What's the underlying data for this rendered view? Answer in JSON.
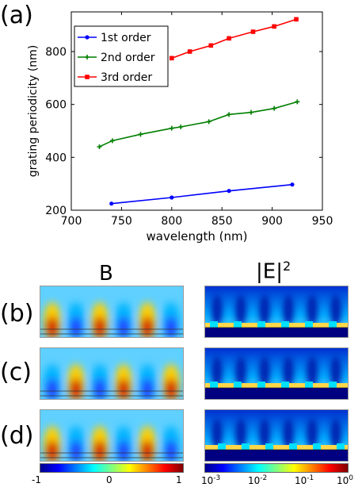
{
  "panel_labels": {
    "a": "(a)",
    "b": "(b)",
    "c": "(c)",
    "d": "(d)"
  },
  "column_titles": {
    "b_field": "B",
    "e_field": "|E|",
    "e_field_sup": "2"
  },
  "chart_data": {
    "type": "line",
    "xlabel": "wavelength (nm)",
    "ylabel": "grating periodicity (nm)",
    "xlim": [
      700,
      950
    ],
    "ylim": [
      200,
      950
    ],
    "xticks": [
      700,
      750,
      800,
      850,
      900,
      950
    ],
    "yticks": [
      200,
      400,
      600,
      800
    ],
    "grid": false,
    "legend_position": "top-left",
    "series": [
      {
        "name": "1st order",
        "color": "#0000ff",
        "marker": "circle",
        "x": [
          740,
          800,
          857,
          920
        ],
        "y": [
          225,
          248,
          273,
          297
        ]
      },
      {
        "name": "2nd order",
        "color": "#007f00",
        "marker": "plus",
        "x": [
          728,
          741,
          769,
          800,
          809,
          837,
          857,
          879,
          902,
          925
        ],
        "y": [
          440,
          463,
          487,
          510,
          515,
          535,
          562,
          570,
          585,
          610
        ]
      },
      {
        "name": "3rd order",
        "color": "#ff0000",
        "marker": "square",
        "x": [
          800,
          818,
          839,
          857,
          881,
          902,
          924
        ],
        "y": [
          775,
          800,
          823,
          850,
          875,
          895,
          922
        ]
      }
    ]
  },
  "colorbars": {
    "b": {
      "ticks": [
        "-1",
        "0",
        "1"
      ]
    },
    "e": {
      "ticks": [
        {
          "base": "10",
          "exp": "-3"
        },
        {
          "base": "10",
          "exp": "-2"
        },
        {
          "base": "10",
          "exp": "-1"
        },
        {
          "base": "10",
          "exp": "0"
        }
      ]
    }
  },
  "field_maps": {
    "rows": [
      {
        "label_key": "b",
        "b_colors": [
          "#d40000",
          "#1e3cff",
          "#d40000",
          "#1e3cff",
          "#d40000",
          "#1e3cff"
        ]
      },
      {
        "label_key": "c",
        "b_colors": [
          "#1e3cff",
          "#d40000",
          "#1e3cff",
          "#d40000",
          "#1e3cff",
          "#d40000"
        ]
      },
      {
        "label_key": "d",
        "b_colors": [
          "#d40000",
          "#1e3cff",
          "#d40000",
          "#1e3cff",
          "#d40000",
          "#1e3cff"
        ]
      }
    ]
  }
}
